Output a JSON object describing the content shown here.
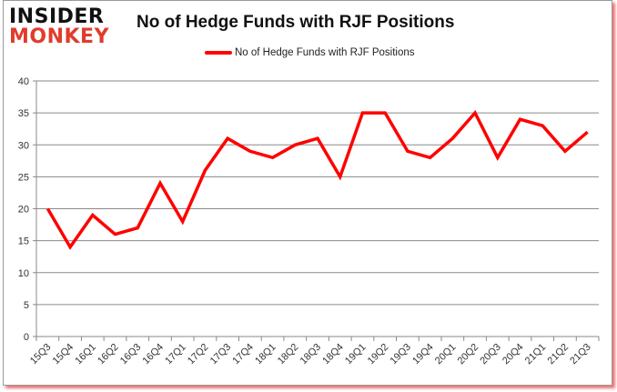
{
  "logo": {
    "line1": "INSIDER",
    "line2": "MONKEY"
  },
  "chart_data": {
    "type": "line",
    "title": "No of Hedge Funds with RJF Positions",
    "xlabel": "",
    "ylabel": "",
    "ylim": [
      0,
      40
    ],
    "yticks": [
      0,
      5,
      10,
      15,
      20,
      25,
      30,
      35,
      40
    ],
    "grid": true,
    "legend_position": "top",
    "categories": [
      "15Q3",
      "15Q4",
      "16Q1",
      "16Q2",
      "16Q3",
      "16Q4",
      "17Q1",
      "17Q2",
      "17Q3",
      "17Q4",
      "18Q1",
      "18Q2",
      "18Q3",
      "18Q4",
      "19Q1",
      "19Q2",
      "19Q3",
      "19Q4",
      "20Q1",
      "20Q2",
      "20Q3",
      "20Q4",
      "21Q1",
      "21Q2",
      "21Q3"
    ],
    "series": [
      {
        "name": "No of Hedge Funds with RJF Positions",
        "color": "#ff0000",
        "values": [
          20,
          14,
          19,
          16,
          17,
          24,
          18,
          26,
          31,
          29,
          28,
          30,
          31,
          25,
          35,
          35,
          29,
          28,
          31,
          35,
          28,
          34,
          33,
          29,
          32
        ]
      }
    ]
  }
}
